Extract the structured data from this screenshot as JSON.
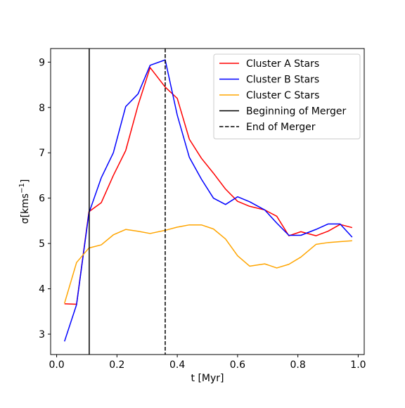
{
  "chart_data": {
    "type": "line",
    "title": "",
    "xlabel": "t [Myr]",
    "ylabel": "σ[kms⁻¹]",
    "ylabel_parts": {
      "prefix": "σ[kms",
      "superscript": "−1",
      "suffix": "]"
    },
    "xlim": [
      -0.02,
      1.02
    ],
    "ylim": [
      2.55,
      9.3
    ],
    "x_ticks": [
      0.0,
      0.2,
      0.4,
      0.6,
      0.8,
      1.0
    ],
    "x_tick_labels": [
      "0.0",
      "0.2",
      "0.4",
      "0.6",
      "0.8",
      "1.0"
    ],
    "y_ticks": [
      3,
      4,
      5,
      6,
      7,
      8,
      9
    ],
    "y_tick_labels": [
      "3",
      "4",
      "5",
      "6",
      "7",
      "8",
      "9"
    ],
    "grid": false,
    "legend_position": "top-right",
    "series": [
      {
        "name": "Cluster A Stars",
        "color": "#ff0000",
        "style": "solid",
        "x": [
          0.026,
          0.066,
          0.107,
          0.148,
          0.188,
          0.229,
          0.27,
          0.31,
          0.36,
          0.4,
          0.44,
          0.48,
          0.52,
          0.56,
          0.6,
          0.64,
          0.69,
          0.73,
          0.77,
          0.81,
          0.86,
          0.9,
          0.94,
          0.98
        ],
        "y": [
          3.67,
          3.66,
          5.7,
          5.9,
          6.5,
          7.05,
          8.05,
          8.88,
          8.45,
          8.2,
          7.3,
          6.88,
          6.55,
          6.2,
          5.93,
          5.82,
          5.74,
          5.6,
          5.17,
          5.26,
          5.17,
          5.27,
          5.42,
          5.35
        ]
      },
      {
        "name": "Cluster B Stars",
        "color": "#0000ff",
        "style": "solid",
        "x": [
          0.026,
          0.066,
          0.107,
          0.148,
          0.188,
          0.229,
          0.27,
          0.31,
          0.36,
          0.4,
          0.44,
          0.48,
          0.52,
          0.56,
          0.6,
          0.64,
          0.69,
          0.73,
          0.77,
          0.81,
          0.86,
          0.9,
          0.94,
          0.98
        ],
        "y": [
          2.84,
          3.65,
          5.67,
          6.45,
          7.0,
          8.02,
          8.3,
          8.93,
          9.05,
          7.83,
          6.9,
          6.42,
          6.0,
          5.86,
          6.03,
          5.92,
          5.74,
          5.45,
          5.18,
          5.18,
          5.31,
          5.43,
          5.43,
          5.14
        ]
      },
      {
        "name": "Cluster C Stars",
        "color": "#ffa500",
        "style": "solid",
        "x": [
          0.026,
          0.066,
          0.107,
          0.148,
          0.188,
          0.229,
          0.27,
          0.31,
          0.36,
          0.4,
          0.44,
          0.48,
          0.52,
          0.56,
          0.6,
          0.64,
          0.69,
          0.73,
          0.77,
          0.81,
          0.86,
          0.9,
          0.94,
          0.98
        ],
        "y": [
          3.68,
          4.58,
          4.9,
          4.97,
          5.19,
          5.31,
          5.27,
          5.22,
          5.29,
          5.36,
          5.41,
          5.41,
          5.32,
          5.1,
          4.73,
          4.5,
          4.55,
          4.46,
          4.54,
          4.7,
          4.98,
          5.02,
          5.04,
          5.06
        ]
      }
    ],
    "vlines": [
      {
        "name": "Beginning of Merger",
        "x": 0.108,
        "color": "#000000",
        "style": "solid"
      },
      {
        "name": "End of Merger",
        "x": 0.36,
        "color": "#000000",
        "style": "dashed"
      }
    ]
  }
}
